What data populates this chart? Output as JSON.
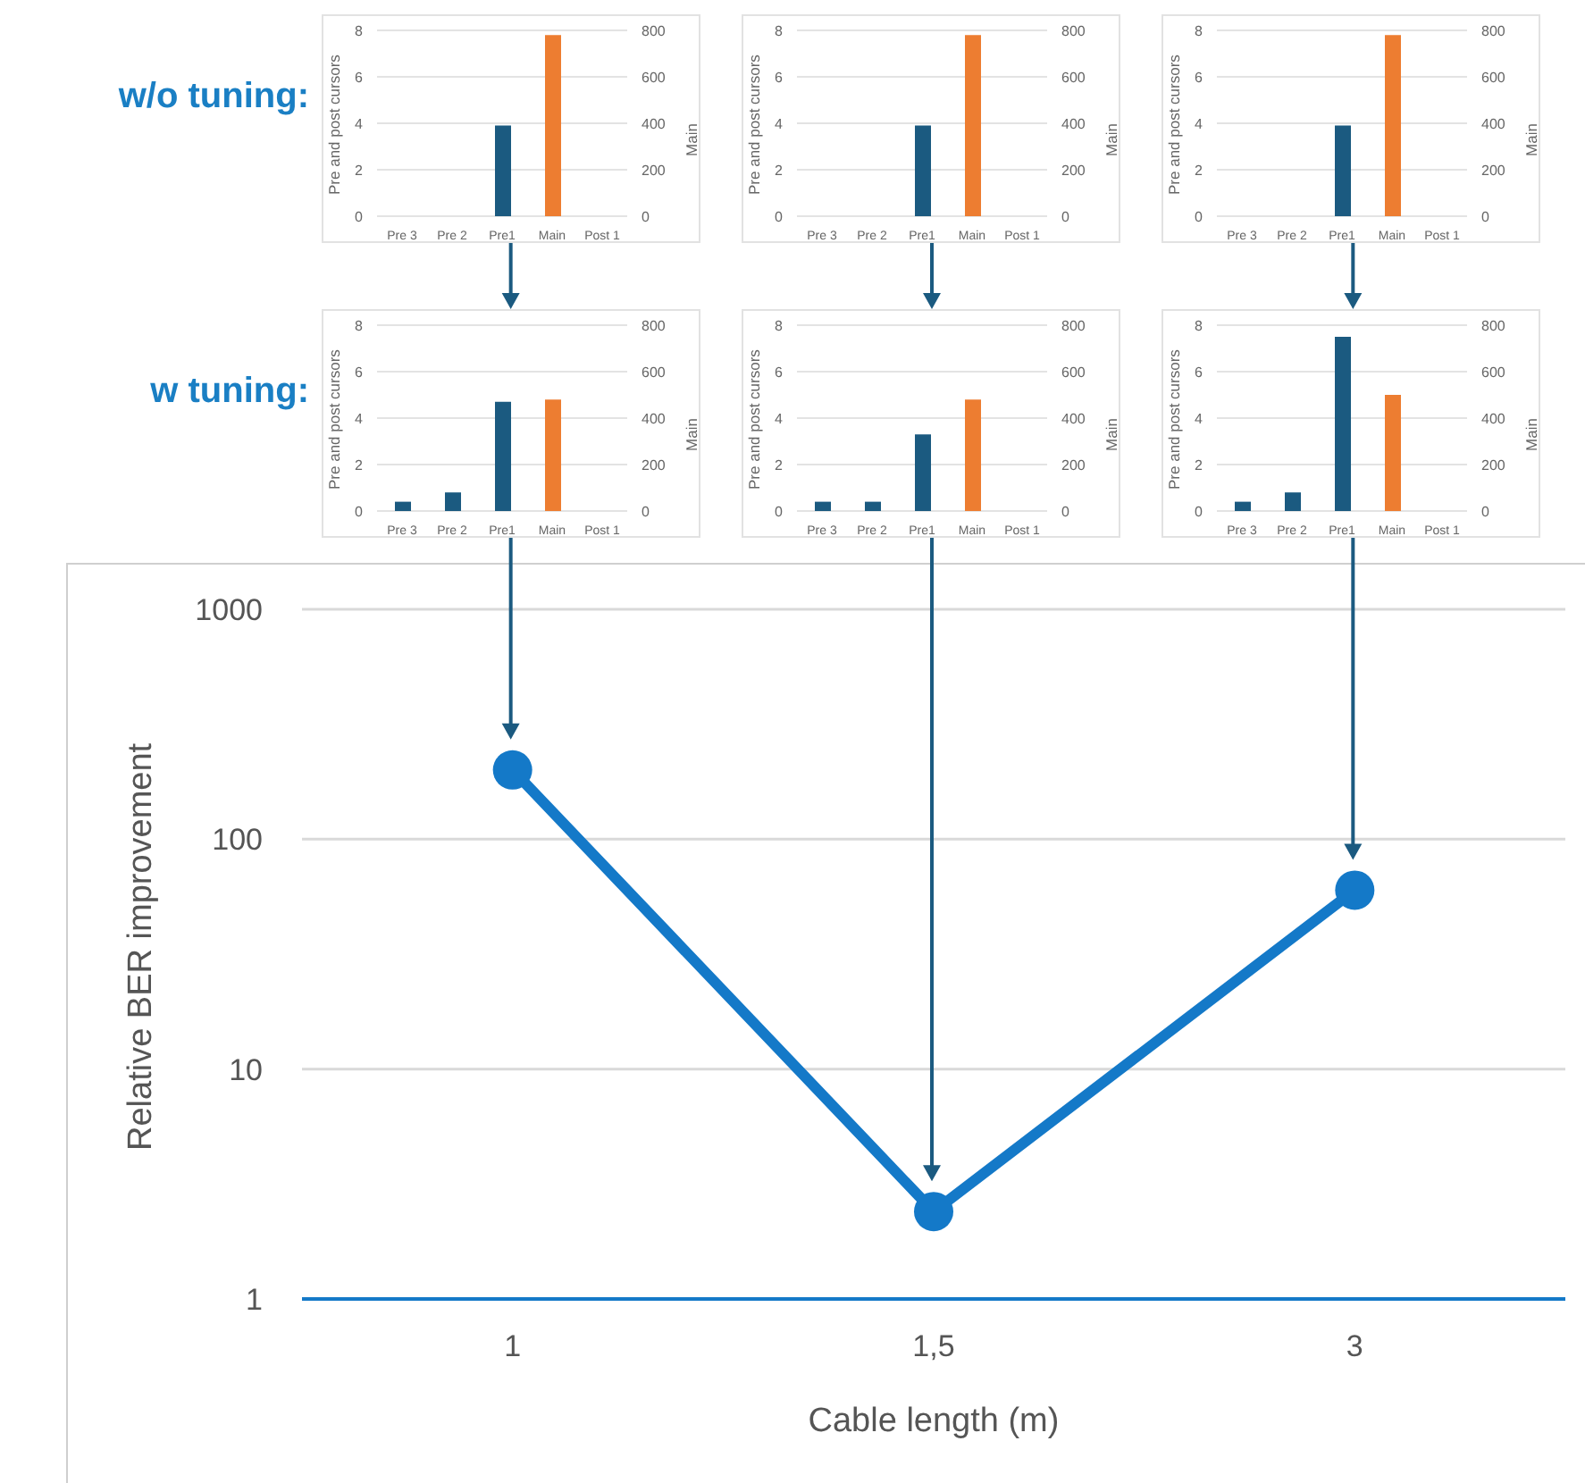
{
  "chart_data": [
    {
      "type": "bar",
      "annotations": [
        "w/o tuning:"
      ],
      "categories": [
        "Pre 3",
        "Pre 2",
        "Pre1",
        "Main",
        "Post 1"
      ],
      "ylabel": "Pre and post cursors",
      "y2label": "Main",
      "ylim": [
        0,
        8
      ],
      "yticks": [
        0,
        2,
        4,
        6,
        8
      ],
      "y2lim": [
        0,
        800
      ],
      "y2ticks": [
        0,
        200,
        400,
        600,
        800
      ],
      "grid": "y",
      "series": [
        {
          "color": "#1b5a80",
          "values": [
            0,
            0,
            3.9,
            null,
            0
          ]
        },
        {
          "color": "#ed7d31",
          "axis": "y2",
          "values": [
            null,
            null,
            null,
            780,
            null
          ]
        }
      ]
    },
    {
      "type": "bar",
      "categories": [
        "Pre 3",
        "Pre 2",
        "Pre1",
        "Main",
        "Post 1"
      ],
      "ylabel": "Pre and post cursors",
      "y2label": "Main",
      "ylim": [
        0,
        8
      ],
      "yticks": [
        0,
        2,
        4,
        6,
        8
      ],
      "y2lim": [
        0,
        800
      ],
      "y2ticks": [
        0,
        200,
        400,
        600,
        800
      ],
      "grid": "y",
      "series": [
        {
          "color": "#1b5a80",
          "values": [
            0,
            0,
            3.9,
            null,
            0
          ]
        },
        {
          "color": "#ed7d31",
          "axis": "y2",
          "values": [
            null,
            null,
            null,
            780,
            null
          ]
        }
      ]
    },
    {
      "type": "bar",
      "categories": [
        "Pre 3",
        "Pre 2",
        "Pre1",
        "Main",
        "Post 1"
      ],
      "ylabel": "Pre and post cursors",
      "y2label": "Main",
      "ylim": [
        0,
        8
      ],
      "yticks": [
        0,
        2,
        4,
        6,
        8
      ],
      "y2lim": [
        0,
        800
      ],
      "y2ticks": [
        0,
        200,
        400,
        600,
        800
      ],
      "grid": "y",
      "series": [
        {
          "color": "#1b5a80",
          "values": [
            0,
            0,
            3.9,
            null,
            0
          ]
        },
        {
          "color": "#ed7d31",
          "axis": "y2",
          "values": [
            null,
            null,
            null,
            780,
            null
          ]
        }
      ]
    },
    {
      "type": "bar",
      "annotations": [
        "w tuning:"
      ],
      "categories": [
        "Pre 3",
        "Pre 2",
        "Pre1",
        "Main",
        "Post 1"
      ],
      "ylabel": "Pre and post cursors",
      "y2label": "Main",
      "ylim": [
        0,
        8
      ],
      "yticks": [
        0,
        2,
        4,
        6,
        8
      ],
      "y2lim": [
        0,
        800
      ],
      "y2ticks": [
        0,
        200,
        400,
        600,
        800
      ],
      "grid": "y",
      "series": [
        {
          "color": "#1b5a80",
          "values": [
            0.4,
            0.8,
            4.7,
            null,
            0
          ]
        },
        {
          "color": "#ed7d31",
          "axis": "y2",
          "values": [
            null,
            null,
            null,
            480,
            null
          ]
        }
      ]
    },
    {
      "type": "bar",
      "categories": [
        "Pre 3",
        "Pre 2",
        "Pre1",
        "Main",
        "Post 1"
      ],
      "ylabel": "Pre and post cursors",
      "y2label": "Main",
      "ylim": [
        0,
        8
      ],
      "yticks": [
        0,
        2,
        4,
        6,
        8
      ],
      "y2lim": [
        0,
        800
      ],
      "y2ticks": [
        0,
        200,
        400,
        600,
        800
      ],
      "grid": "y",
      "series": [
        {
          "color": "#1b5a80",
          "values": [
            0.4,
            0.4,
            3.3,
            null,
            0
          ]
        },
        {
          "color": "#ed7d31",
          "axis": "y2",
          "values": [
            null,
            null,
            null,
            480,
            null
          ]
        }
      ]
    },
    {
      "type": "bar",
      "categories": [
        "Pre 3",
        "Pre 2",
        "Pre1",
        "Main",
        "Post 1"
      ],
      "ylabel": "Pre and post cursors",
      "y2label": "Main",
      "ylim": [
        0,
        8
      ],
      "yticks": [
        0,
        2,
        4,
        6,
        8
      ],
      "y2lim": [
        0,
        800
      ],
      "y2ticks": [
        0,
        200,
        400,
        600,
        800
      ],
      "grid": "y",
      "series": [
        {
          "color": "#1b5a80",
          "values": [
            0.4,
            0.8,
            7.5,
            null,
            0
          ]
        },
        {
          "color": "#ed7d31",
          "axis": "y2",
          "values": [
            null,
            null,
            null,
            500,
            null
          ]
        }
      ]
    },
    {
      "type": "line",
      "categories": [
        "1",
        "1,5",
        "3"
      ],
      "xlabel": "Cable length (m)",
      "ylabel": "Relative BER improvement",
      "log": true,
      "ylim": [
        1,
        1000
      ],
      "yticks": [
        1,
        10,
        100,
        1000
      ],
      "grid": "y",
      "marker": "circle",
      "line_style": "solid",
      "series": [
        {
          "color": "#1479c8",
          "values": [
            200,
            2.4,
            60
          ]
        }
      ]
    }
  ]
}
